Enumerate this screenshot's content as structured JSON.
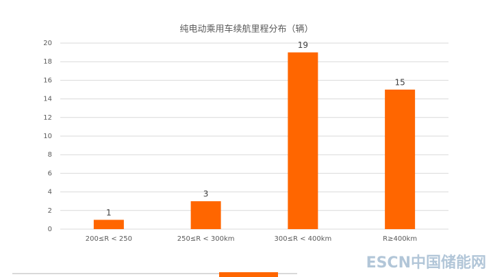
{
  "chart_data": {
    "type": "bar",
    "title": "纯电动乘用车续航里程分布（辆）",
    "categories": [
      "200≤R < 250",
      "250≤R < 300km",
      "300≤R < 400km",
      "R≥400km"
    ],
    "values": [
      1,
      3,
      19,
      15
    ],
    "color": "#ff6600",
    "ylim": [
      0,
      20
    ],
    "yticks": [
      0,
      2,
      4,
      6,
      8,
      10,
      12,
      14,
      16,
      18,
      20
    ],
    "grid": true,
    "watermark": "ESCN中国储能网"
  }
}
